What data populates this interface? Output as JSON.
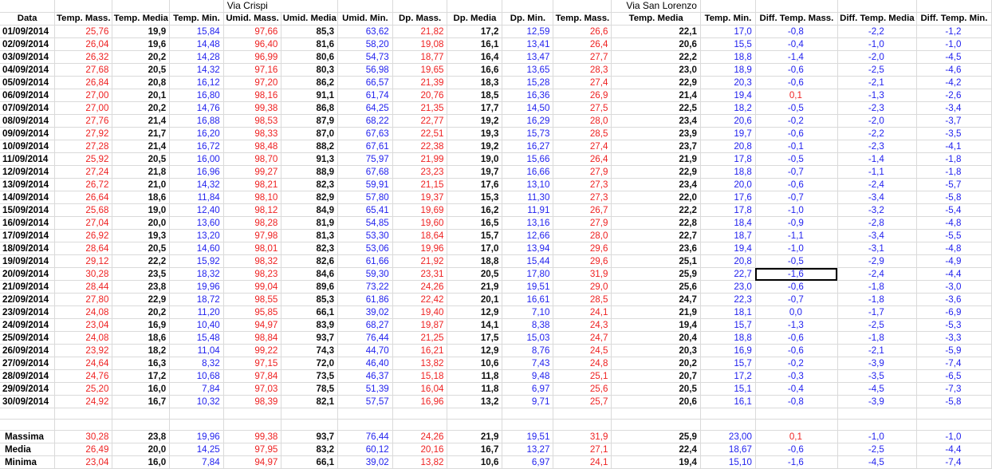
{
  "sections": {
    "via_crispi": "Via Crispi",
    "via_san_lorenzo": "Via San Lorenzo"
  },
  "headers": [
    "Data",
    "Temp. Mass.",
    "Temp. Media",
    "Temp. Min.",
    "Umid. Mass.",
    "Umid. Media",
    "Umid. Min.",
    "Dp. Mass.",
    "Dp. Media",
    "Dp. Min.",
    "Temp. Mass.",
    "Temp. Media",
    "Temp. Min.",
    "Diff. Temp. Mass.",
    "Diff. Temp. Media",
    "Diff. Temp. Min."
  ],
  "rows": [
    [
      "01/09/2014",
      "25,76",
      "19,9",
      "15,84",
      "97,66",
      "85,3",
      "63,62",
      "21,82",
      "17,2",
      "12,59",
      "26,6",
      "22,1",
      "17,0",
      "-0,8",
      "-2,2",
      "-1,2"
    ],
    [
      "02/09/2014",
      "26,04",
      "19,6",
      "14,48",
      "96,40",
      "81,6",
      "58,20",
      "19,08",
      "16,1",
      "13,41",
      "26,4",
      "20,6",
      "15,5",
      "-0,4",
      "-1,0",
      "-1,0"
    ],
    [
      "03/09/2014",
      "26,32",
      "20,2",
      "14,28",
      "96,99",
      "80,6",
      "54,73",
      "18,77",
      "16,4",
      "13,47",
      "27,7",
      "22,2",
      "18,8",
      "-1,4",
      "-2,0",
      "-4,5"
    ],
    [
      "04/09/2014",
      "27,68",
      "20,5",
      "14,32",
      "97,16",
      "80,3",
      "56,98",
      "19,65",
      "16,6",
      "13,65",
      "28,3",
      "23,0",
      "18,9",
      "-0,6",
      "-2,5",
      "-4,6"
    ],
    [
      "05/09/2014",
      "26,84",
      "20,8",
      "16,12",
      "97,20",
      "86,2",
      "66,57",
      "21,39",
      "18,3",
      "15,28",
      "27,4",
      "22,9",
      "20,3",
      "-0,6",
      "-2,1",
      "-4,2"
    ],
    [
      "06/09/2014",
      "27,00",
      "20,1",
      "16,80",
      "98,16",
      "91,1",
      "61,74",
      "20,76",
      "18,5",
      "16,36",
      "26,9",
      "21,4",
      "19,4",
      "0,1",
      "-1,3",
      "-2,6"
    ],
    [
      "07/09/2014",
      "27,00",
      "20,2",
      "14,76",
      "99,38",
      "86,8",
      "64,25",
      "21,35",
      "17,7",
      "14,50",
      "27,5",
      "22,5",
      "18,2",
      "-0,5",
      "-2,3",
      "-3,4"
    ],
    [
      "08/09/2014",
      "27,76",
      "21,4",
      "16,88",
      "98,53",
      "87,9",
      "68,22",
      "22,77",
      "19,2",
      "16,29",
      "28,0",
      "23,4",
      "20,6",
      "-0,2",
      "-2,0",
      "-3,7"
    ],
    [
      "09/09/2014",
      "27,92",
      "21,7",
      "16,20",
      "98,33",
      "87,0",
      "67,63",
      "22,51",
      "19,3",
      "15,73",
      "28,5",
      "23,9",
      "19,7",
      "-0,6",
      "-2,2",
      "-3,5"
    ],
    [
      "10/09/2014",
      "27,28",
      "21,4",
      "16,72",
      "98,48",
      "88,2",
      "67,61",
      "22,38",
      "19,2",
      "16,27",
      "27,4",
      "23,7",
      "20,8",
      "-0,1",
      "-2,3",
      "-4,1"
    ],
    [
      "11/09/2014",
      "25,92",
      "20,5",
      "16,00",
      "98,70",
      "91,3",
      "75,97",
      "21,99",
      "19,0",
      "15,66",
      "26,4",
      "21,9",
      "17,8",
      "-0,5",
      "-1,4",
      "-1,8"
    ],
    [
      "12/09/2014",
      "27,24",
      "21,8",
      "16,96",
      "99,27",
      "88,9",
      "67,68",
      "23,23",
      "19,7",
      "16,66",
      "27,9",
      "22,9",
      "18,8",
      "-0,7",
      "-1,1",
      "-1,8"
    ],
    [
      "13/09/2014",
      "26,72",
      "21,0",
      "14,32",
      "98,21",
      "82,3",
      "59,91",
      "21,15",
      "17,6",
      "13,10",
      "27,3",
      "23,4",
      "20,0",
      "-0,6",
      "-2,4",
      "-5,7"
    ],
    [
      "14/09/2014",
      "26,64",
      "18,6",
      "11,84",
      "98,10",
      "82,9",
      "57,80",
      "19,37",
      "15,3",
      "11,30",
      "27,3",
      "22,0",
      "17,6",
      "-0,7",
      "-3,4",
      "-5,8"
    ],
    [
      "15/09/2014",
      "25,68",
      "19,0",
      "12,40",
      "98,12",
      "84,9",
      "65,41",
      "19,69",
      "16,2",
      "11,91",
      "26,7",
      "22,2",
      "17,8",
      "-1,0",
      "-3,2",
      "-5,4"
    ],
    [
      "16/09/2014",
      "27,04",
      "20,0",
      "13,60",
      "98,28",
      "81,9",
      "54,85",
      "19,60",
      "16,5",
      "13,16",
      "27,9",
      "22,8",
      "18,4",
      "-0,9",
      "-2,8",
      "-4,8"
    ],
    [
      "17/09/2014",
      "26,92",
      "19,3",
      "13,20",
      "97,98",
      "81,3",
      "53,30",
      "18,64",
      "15,7",
      "12,66",
      "28,0",
      "22,7",
      "18,7",
      "-1,1",
      "-3,4",
      "-5,5"
    ],
    [
      "18/09/2014",
      "28,64",
      "20,5",
      "14,60",
      "98,01",
      "82,3",
      "53,06",
      "19,96",
      "17,0",
      "13,94",
      "29,6",
      "23,6",
      "19,4",
      "-1,0",
      "-3,1",
      "-4,8"
    ],
    [
      "19/09/2014",
      "29,12",
      "22,2",
      "15,92",
      "98,32",
      "82,6",
      "61,66",
      "21,92",
      "18,8",
      "15,44",
      "29,6",
      "25,1",
      "20,8",
      "-0,5",
      "-2,9",
      "-4,9"
    ],
    [
      "20/09/2014",
      "30,28",
      "23,5",
      "18,32",
      "98,23",
      "84,6",
      "59,30",
      "23,31",
      "20,5",
      "17,80",
      "31,9",
      "25,9",
      "22,7",
      "-1,6",
      "-2,4",
      "-4,4"
    ],
    [
      "21/09/2014",
      "28,44",
      "23,8",
      "19,96",
      "99,04",
      "89,6",
      "73,22",
      "24,26",
      "21,9",
      "19,51",
      "29,0",
      "25,6",
      "23,0",
      "-0,6",
      "-1,8",
      "-3,0"
    ],
    [
      "22/09/2014",
      "27,80",
      "22,9",
      "18,72",
      "98,55",
      "85,3",
      "61,86",
      "22,42",
      "20,1",
      "16,61",
      "28,5",
      "24,7",
      "22,3",
      "-0,7",
      "-1,8",
      "-3,6"
    ],
    [
      "23/09/2014",
      "24,08",
      "20,2",
      "11,20",
      "95,85",
      "66,1",
      "39,02",
      "19,40",
      "12,9",
      "7,10",
      "24,1",
      "21,9",
      "18,1",
      "0,0",
      "-1,7",
      "-6,9"
    ],
    [
      "24/09/2014",
      "23,04",
      "16,9",
      "10,40",
      "94,97",
      "83,9",
      "68,27",
      "19,87",
      "14,1",
      "8,38",
      "24,3",
      "19,4",
      "15,7",
      "-1,3",
      "-2,5",
      "-5,3"
    ],
    [
      "25/09/2014",
      "24,08",
      "18,6",
      "15,48",
      "98,84",
      "93,7",
      "76,44",
      "21,25",
      "17,5",
      "15,03",
      "24,7",
      "20,4",
      "18,8",
      "-0,6",
      "-1,8",
      "-3,3"
    ],
    [
      "26/09/2014",
      "23,92",
      "18,2",
      "11,04",
      "99,22",
      "74,3",
      "44,70",
      "16,21",
      "12,9",
      "8,76",
      "24,5",
      "20,3",
      "16,9",
      "-0,6",
      "-2,1",
      "-5,9"
    ],
    [
      "27/09/2014",
      "24,64",
      "16,3",
      "8,32",
      "97,15",
      "72,0",
      "46,40",
      "13,82",
      "10,6",
      "7,43",
      "24,8",
      "20,2",
      "15,7",
      "-0,2",
      "-3,9",
      "-7,4"
    ],
    [
      "28/09/2014",
      "24,76",
      "17,2",
      "10,68",
      "97,84",
      "73,5",
      "46,37",
      "15,18",
      "11,8",
      "9,48",
      "25,1",
      "20,7",
      "17,2",
      "-0,3",
      "-3,5",
      "-6,5"
    ],
    [
      "29/09/2014",
      "25,20",
      "16,0",
      "7,84",
      "97,03",
      "78,5",
      "51,39",
      "16,04",
      "11,8",
      "6,97",
      "25,6",
      "20,5",
      "15,1",
      "-0,4",
      "-4,5",
      "-7,3"
    ],
    [
      "30/09/2014",
      "24,92",
      "16,7",
      "10,32",
      "98,39",
      "82,1",
      "57,57",
      "16,96",
      "13,2",
      "9,71",
      "25,7",
      "20,6",
      "16,1",
      "-0,8",
      "-3,9",
      "-5,8"
    ]
  ],
  "summary": [
    [
      "Massima",
      "30,28",
      "23,8",
      "19,96",
      "99,38",
      "93,7",
      "76,44",
      "24,26",
      "21,9",
      "19,51",
      "31,9",
      "25,9",
      "23,00",
      "0,1",
      "-1,0",
      "-1,0"
    ],
    [
      "Media",
      "26,49",
      "20,0",
      "14,25",
      "97,95",
      "83,2",
      "60,12",
      "20,16",
      "16,7",
      "13,27",
      "27,1",
      "22,4",
      "18,67",
      "-0,6",
      "-2,5",
      "-4,4"
    ],
    [
      "Minima",
      "23,04",
      "16,0",
      "7,84",
      "94,97",
      "66,1",
      "39,02",
      "13,82",
      "10,6",
      "6,97",
      "24,1",
      "19,4",
      "15,10",
      "-1,6",
      "-4,5",
      "-7,4"
    ]
  ],
  "colors": {
    "mass": "#ee2222",
    "media": "#111111",
    "min": "#2222ee",
    "grid": "#dadada"
  },
  "selected_cell": {
    "row": 19,
    "col": 13
  }
}
